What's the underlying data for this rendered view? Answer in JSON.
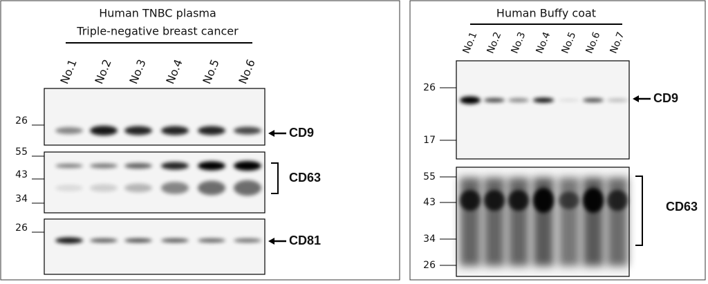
{
  "panels": [
    {
      "title_lines": [
        "Human TNBC plasma",
        "Triple-negative breast cancer"
      ],
      "lanes": [
        "No.1",
        "No.2",
        "No.3",
        "No.4",
        "No.5",
        "No.6"
      ],
      "blots": [
        {
          "markers": [
            "26"
          ],
          "label": "CD9"
        },
        {
          "markers": [
            "55",
            "43",
            "34"
          ],
          "label": "CD63"
        },
        {
          "markers": [
            "26"
          ],
          "label": "CD81"
        }
      ]
    },
    {
      "title_lines": [
        "Human Buffy coat"
      ],
      "lanes": [
        "No.1",
        "No.2",
        "No.3",
        "No.4",
        "No.5",
        "No.6",
        "No.7"
      ],
      "blots": [
        {
          "markers": [
            "26",
            "17"
          ],
          "label": "CD9"
        },
        {
          "markers": [
            "55",
            "43",
            "34",
            "26"
          ],
          "label": "CD63"
        }
      ]
    }
  ]
}
